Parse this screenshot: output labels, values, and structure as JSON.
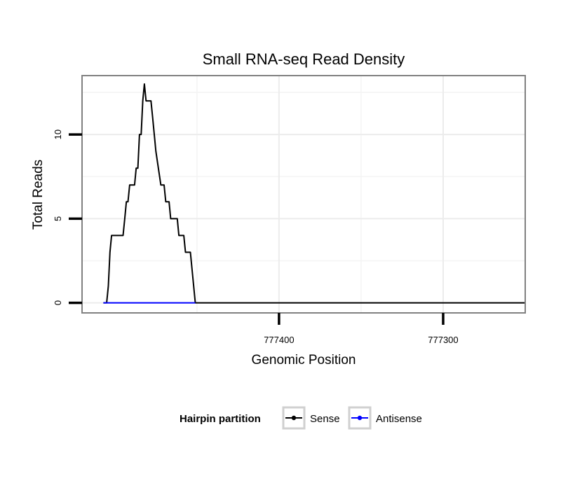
{
  "chart_data": {
    "type": "line",
    "title": "Small RNA-seq Read Density",
    "xlabel": "Genomic Position",
    "ylabel": "Total Reads",
    "xlim": [
      777520,
      777250
    ],
    "ylim": [
      -0.6,
      13.5
    ],
    "x_reversed": true,
    "x_ticks": [
      {
        "value": 777400,
        "label": "777400"
      },
      {
        "value": 777300,
        "label": "777300"
      }
    ],
    "y_ticks": [
      {
        "value": 0,
        "label": "0"
      },
      {
        "value": 5,
        "label": "5"
      },
      {
        "value": 10,
        "label": "10"
      }
    ],
    "x_minor_grid": [
      777450,
      777350
    ],
    "y_minor_grid": [
      2.5,
      7.5,
      12.5
    ],
    "series": [
      {
        "name": "Sense",
        "color": "#000000",
        "x": [
          777507,
          777505,
          777504,
          777503,
          777502,
          777501,
          777500,
          777495,
          777494,
          777493,
          777492,
          777491,
          777490,
          777488,
          777487,
          777486,
          777485,
          777484,
          777483,
          777482,
          777481,
          777480,
          777478,
          777477,
          777476,
          777475,
          777472,
          777471,
          777470,
          777469,
          777467,
          777466,
          777465,
          777462,
          777461,
          777458,
          777457,
          777455,
          777454,
          777451,
          777250
        ],
        "y": [
          0,
          0,
          1,
          3,
          4,
          4,
          4,
          4,
          5,
          6,
          6,
          7,
          7,
          7,
          8,
          8,
          10,
          10,
          12,
          13,
          12,
          12,
          12,
          11,
          10,
          9,
          7,
          7,
          7,
          6,
          6,
          5,
          5,
          5,
          4,
          4,
          3,
          3,
          3,
          0,
          0
        ]
      },
      {
        "name": "Antisense",
        "color": "#0000ff",
        "x": [
          777507,
          777451
        ],
        "y": [
          0,
          0
        ]
      }
    ],
    "legend": {
      "title": "Hairpin partition",
      "position": "bottom",
      "entries": [
        {
          "label": "Sense",
          "color": "#000000"
        },
        {
          "label": "Antisense",
          "color": "#0000ff"
        }
      ]
    },
    "grid": true
  }
}
